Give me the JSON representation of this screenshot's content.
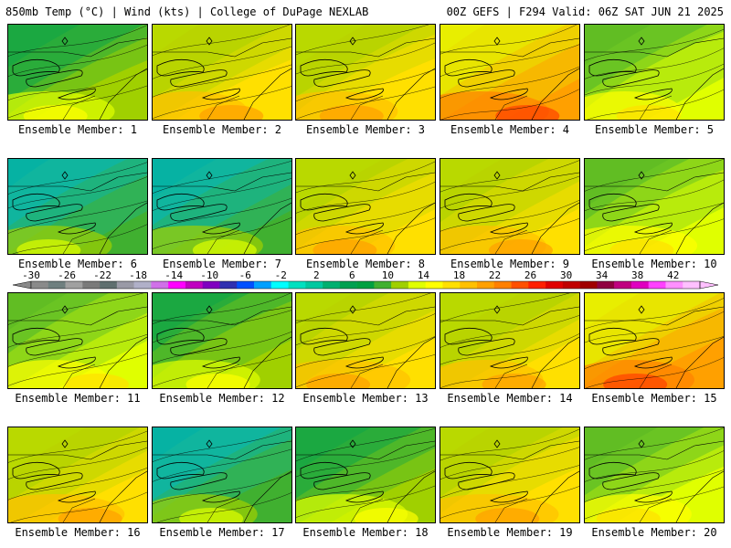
{
  "header": {
    "left": "850mb Temp (°C) | Wind (kts) | College of DuPage NEXLAB",
    "right": "00Z GEFS | F294 Valid: 06Z SAT JUN 21 2025"
  },
  "colorbar": {
    "ticks": [
      "-30",
      "-26",
      "-22",
      "-18",
      "-14",
      "-10",
      "-6",
      "-2",
      "2",
      "6",
      "10",
      "14",
      "18",
      "22",
      "26",
      "30",
      "34",
      "38",
      "42"
    ],
    "colors": [
      "#8a8a8a",
      "#6f7f7f",
      "#a0a0a0",
      "#7a7a7a",
      "#5f6f6f",
      "#9a9aa6",
      "#b0b0c8",
      "#d070e8",
      "#ff00ff",
      "#c000c0",
      "#8000c0",
      "#3030b0",
      "#0050ff",
      "#00a0ff",
      "#00ffff",
      "#00e0c0",
      "#00c8a0",
      "#00b070",
      "#00a050",
      "#00a040",
      "#40b030",
      "#a0d000",
      "#e0ff00",
      "#ffff00",
      "#ffe000",
      "#ffc000",
      "#ffa000",
      "#ff8000",
      "#ff5000",
      "#ff2000",
      "#e00000",
      "#c00000",
      "#a00000",
      "#900040",
      "#c00080",
      "#e000c0",
      "#ff40ff",
      "#ff90ff",
      "#ffc0ff"
    ]
  },
  "panels": [
    {
      "label": "Ensemble Member: 1",
      "theme": "cool"
    },
    {
      "label": "Ensemble Member: 2",
      "theme": "warm"
    },
    {
      "label": "Ensemble Member: 3",
      "theme": "warm"
    },
    {
      "label": "Ensemble Member: 4",
      "theme": "hot"
    },
    {
      "label": "Ensemble Member: 5",
      "theme": "mild"
    },
    {
      "label": "Ensemble Member: 6",
      "theme": "cold"
    },
    {
      "label": "Ensemble Member: 7",
      "theme": "cold"
    },
    {
      "label": "Ensemble Member: 8",
      "theme": "warm"
    },
    {
      "label": "Ensemble Member: 9",
      "theme": "warm"
    },
    {
      "label": "Ensemble Member: 10",
      "theme": "mild"
    },
    {
      "label": "Ensemble Member: 11",
      "theme": "mild"
    },
    {
      "label": "Ensemble Member: 12",
      "theme": "cool"
    },
    {
      "label": "Ensemble Member: 13",
      "theme": "warm"
    },
    {
      "label": "Ensemble Member: 14",
      "theme": "warm"
    },
    {
      "label": "Ensemble Member: 15",
      "theme": "hot"
    },
    {
      "label": "Ensemble Member: 16",
      "theme": "warm"
    },
    {
      "label": "Ensemble Member: 17",
      "theme": "cold"
    },
    {
      "label": "Ensemble Member: 18",
      "theme": "cool"
    },
    {
      "label": "Ensemble Member: 19",
      "theme": "warm"
    },
    {
      "label": "Ensemble Member: 20",
      "theme": "mild"
    }
  ]
}
